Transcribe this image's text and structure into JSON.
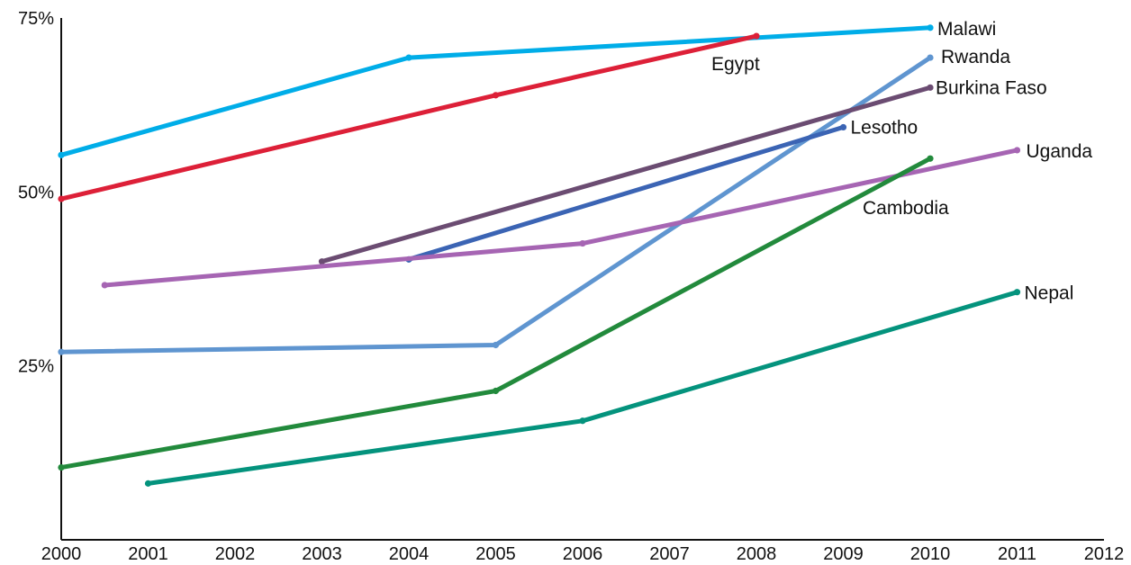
{
  "chart_data": {
    "type": "line",
    "title": "",
    "xlabel": "",
    "ylabel": "",
    "xlim": [
      2000,
      2012
    ],
    "ylim": [
      0,
      75
    ],
    "x_ticks": [
      2000,
      2001,
      2002,
      2003,
      2004,
      2005,
      2006,
      2007,
      2008,
      2009,
      2010,
      2011,
      2012
    ],
    "x_tick_labels": [
      "2000",
      "2001",
      "2002",
      "2003",
      "2004",
      "2005",
      "2006",
      "2007",
      "2008",
      "2009",
      "2010",
      "2011",
      "2012"
    ],
    "y_ticks": [
      25,
      50,
      75
    ],
    "y_tick_labels": [
      "25%",
      "50%",
      "75%"
    ],
    "grid": false,
    "legend": "none (series labeled directly at line ends)",
    "series": [
      {
        "name": "Malawi",
        "color": "#00ade8",
        "x": [
          2000,
          2004,
          2010
        ],
        "y": [
          55.3,
          69.3,
          73.6
        ]
      },
      {
        "name": "Egypt",
        "color": "#dd2038",
        "x": [
          2000,
          2005,
          2008
        ],
        "y": [
          49.0,
          63.9,
          72.4
        ]
      },
      {
        "name": "Rwanda",
        "color": "#5f95d0",
        "x": [
          2000,
          2005,
          2010
        ],
        "y": [
          27.0,
          28.0,
          69.3
        ]
      },
      {
        "name": "Burkina Faso",
        "color": "#6b4c72",
        "x": [
          2003,
          2010
        ],
        "y": [
          40.0,
          65.0
        ]
      },
      {
        "name": "Lesotho",
        "color": "#3b64b4",
        "x": [
          2004,
          2009
        ],
        "y": [
          40.3,
          59.3
        ]
      },
      {
        "name": "Uganda",
        "color": "#a665b3",
        "x": [
          2000.5,
          2006,
          2011
        ],
        "y": [
          36.6,
          42.6,
          56.0
        ]
      },
      {
        "name": "Cambodia",
        "color": "#228a3c",
        "x": [
          2000,
          2005,
          2010
        ],
        "y": [
          10.4,
          21.4,
          54.8
        ]
      },
      {
        "name": "Nepal",
        "color": "#04937d",
        "x": [
          2001,
          2006,
          2011
        ],
        "y": [
          8.1,
          17.1,
          35.6
        ]
      }
    ]
  }
}
